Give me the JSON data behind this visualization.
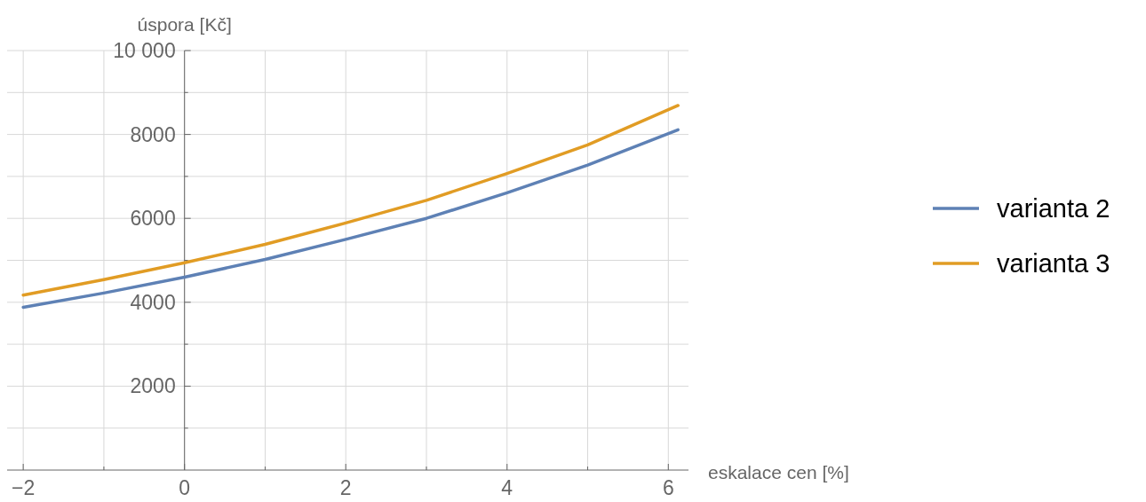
{
  "chart_data": {
    "type": "line",
    "xlabel": "eskalace cen [%]",
    "ylabel": "úspora [Kč]",
    "x": [
      -2,
      -1,
      0,
      1,
      2,
      3,
      4,
      5,
      6.12
    ],
    "series": [
      {
        "name": "varianta 2",
        "color": "#5e81b5",
        "values": [
          3880,
          4220,
          4600,
          5020,
          5500,
          6000,
          6610,
          7270,
          8110
        ]
      },
      {
        "name": "varianta 3",
        "color": "#e19c24",
        "values": [
          4170,
          4540,
          4940,
          5380,
          5890,
          6430,
          7070,
          7750,
          8690
        ]
      }
    ],
    "xlim": [
      -2.2,
      6.25
    ],
    "ylim": [
      0,
      10000
    ],
    "xticks": [
      {
        "value": -2,
        "label": "−2"
      },
      {
        "value": -1,
        "label": null
      },
      0,
      {
        "value": 1,
        "label": null
      },
      2,
      {
        "value": 3,
        "label": null
      },
      4,
      {
        "value": 5,
        "label": null
      },
      6
    ],
    "yticks": [
      {
        "value": 1000,
        "label": null
      },
      2000,
      {
        "value": 3000,
        "label": null
      },
      4000,
      {
        "value": 5000,
        "label": null
      },
      6000,
      {
        "value": 7000,
        "label": null
      },
      8000,
      {
        "value": 9000,
        "label": null
      },
      {
        "value": 10000,
        "label": "10 000"
      }
    ],
    "grid": true,
    "legend": "right",
    "line_style": "solid"
  }
}
